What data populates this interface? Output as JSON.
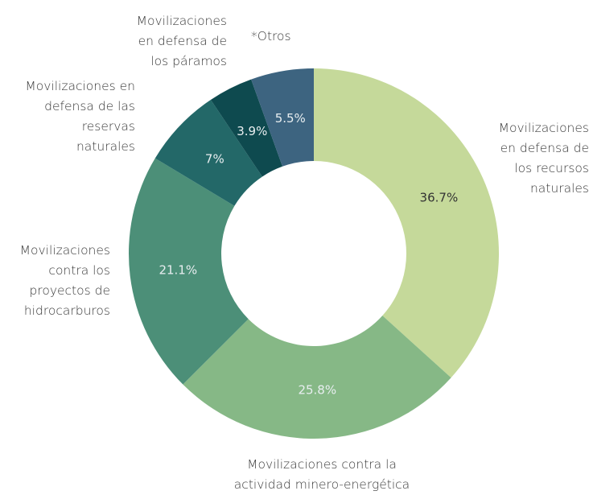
{
  "chart_data": {
    "type": "donut",
    "categories": [
      "Movilizaciones en defensa de los recursos naturales",
      "Movilizaciones contra la actividad minero-energética",
      "Movilizaciones contra los proyectos de hidrocarburos",
      "Movilizaciones en defensa de las reservas naturales",
      "Movilizaciones en defensa de los páramos",
      "*Otros"
    ],
    "values": [
      36.7,
      25.8,
      21.1,
      7,
      3.9,
      5.5
    ],
    "value_labels": [
      "36.7%",
      "25.8%",
      "21.1%",
      "7%",
      "3.9%",
      "5.5%"
    ],
    "colors": [
      "#c5d99a",
      "#86b886",
      "#4c8f78",
      "#236868",
      "#0e4a4f",
      "#3d6480"
    ]
  }
}
